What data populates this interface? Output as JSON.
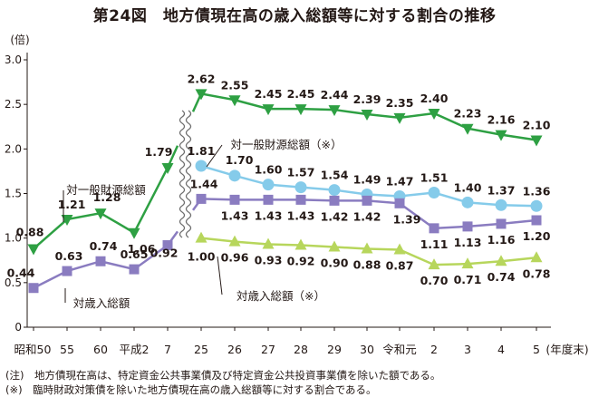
{
  "title": "第24図　地方債現在高の歳入総額等に対する割合の推移",
  "notes": [
    "(注)　地方債現在高は、特定資金公共事業債及び特定資金公共投資事業債を除いた額である。",
    "(※)　臨時財政対策債を除いた地方債現在高の歳入総額等に対する割合である。"
  ],
  "chart_data": {
    "type": "line",
    "title": "第24図　地方債現在高の歳入総額等に対する割合の推移",
    "ylabel": "(倍)",
    "xlabel": "(年度末)",
    "ylim": [
      0,
      3.0
    ],
    "yticks": [
      "0",
      "0.5",
      "1.0",
      "1.5",
      "2.0",
      "2.5",
      "3.0"
    ],
    "categories": [
      "昭和50",
      "55",
      "60",
      "平成2",
      "7",
      "25",
      "26",
      "27",
      "28",
      "29",
      "30",
      "令和元",
      "2",
      "3",
      "4",
      "5"
    ],
    "axis_break_after": "7",
    "grid": false,
    "colors": {
      "s1": "#2ea043",
      "s2": "#85cbea",
      "s3": "#8a7cc0",
      "s4": "#b7d65c",
      "axis": "#231815"
    },
    "series": [
      {
        "name": "対一般財源総額",
        "marker": "triangle-down",
        "values": [
          0.88,
          1.21,
          1.28,
          1.06,
          1.79,
          2.62,
          2.55,
          2.45,
          2.45,
          2.44,
          2.39,
          2.35,
          2.4,
          2.23,
          2.16,
          2.1
        ],
        "labels": [
          "0.88",
          "1.21",
          "1.28",
          "1.06",
          "1.79",
          "2.62",
          "2.55",
          "2.45",
          "2.45",
          "2.44",
          "2.39",
          "2.35",
          "2.40",
          "2.23",
          "2.16",
          "2.10"
        ]
      },
      {
        "name": "対一般財源総額（※）",
        "marker": "circle",
        "values": [
          null,
          null,
          null,
          null,
          null,
          1.81,
          1.7,
          1.6,
          1.57,
          1.54,
          1.49,
          1.47,
          1.51,
          1.4,
          1.37,
          1.36
        ],
        "labels": [
          null,
          null,
          null,
          null,
          null,
          "1.81",
          "1.70",
          "1.60",
          "1.57",
          "1.54",
          "1.49",
          "1.47",
          "1.51",
          "1.40",
          "1.37",
          "1.36"
        ]
      },
      {
        "name": "対歳入総額",
        "marker": "square",
        "values": [
          0.44,
          0.63,
          0.74,
          0.65,
          0.92,
          1.44,
          1.43,
          1.43,
          1.43,
          1.42,
          1.42,
          1.39,
          1.11,
          1.13,
          1.16,
          1.2
        ],
        "labels": [
          "0.44",
          "0.63",
          "0.74",
          "0.65",
          "0.92",
          "1.44",
          "1.43",
          "1.43",
          "1.43",
          "1.42",
          "1.42",
          "1.39",
          "1.11",
          "1.13",
          "1.16",
          "1.20"
        ]
      },
      {
        "name": "対歳入総額（※）",
        "marker": "triangle-up",
        "values": [
          null,
          null,
          null,
          null,
          null,
          1.0,
          0.96,
          0.93,
          0.92,
          0.9,
          0.88,
          0.87,
          0.7,
          0.71,
          0.74,
          0.78
        ],
        "labels": [
          null,
          null,
          null,
          null,
          null,
          "1.00",
          "0.96",
          "0.93",
          "0.92",
          "0.90",
          "0.88",
          "0.87",
          "0.70",
          "0.71",
          "0.74",
          "0.78"
        ]
      }
    ]
  }
}
